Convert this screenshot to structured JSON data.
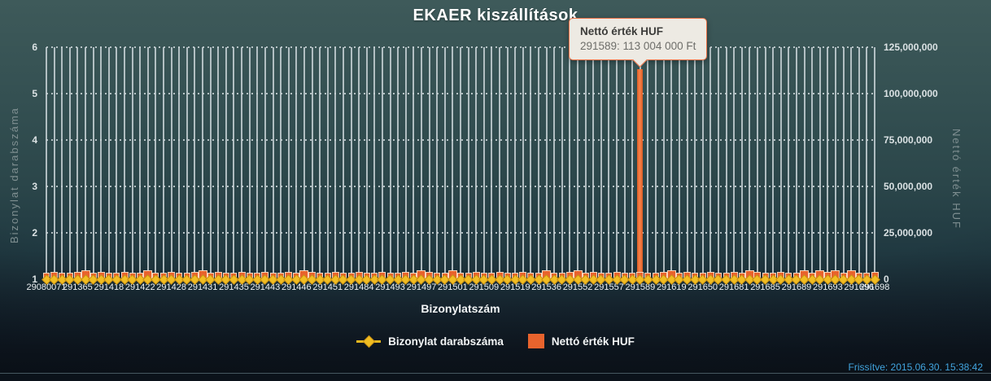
{
  "title": "EKAER kiszállítások",
  "tooltip": {
    "title": "Nettó érték HUF",
    "value": "291589: 113 004 000 Ft"
  },
  "axes": {
    "left": {
      "title": "Bizonylat darabszáma",
      "ticks": [
        "6",
        "5",
        "4",
        "3",
        "2",
        "1"
      ]
    },
    "right": {
      "title": "Nettó érték HUF",
      "ticks": [
        "125,000,000",
        "100,000,000",
        "75,000,000",
        "50,000,000",
        "25,000,000",
        "0"
      ]
    },
    "x": {
      "title": "Bizonylatszám"
    }
  },
  "legend": {
    "items": [
      {
        "label": "Bizonylat darabszáma",
        "marker": "diamond-line",
        "color": "#f1bd22"
      },
      {
        "label": "Nettó érték HUF",
        "marker": "square",
        "color": "#e8632d"
      }
    ]
  },
  "footer": {
    "updated": "Frissítve: 2015.06.30. 15:38:42"
  },
  "colors": {
    "count_series": "#f1bd22",
    "net_series": "#e8632d",
    "tooltip_bg": "#edeae3",
    "tooltip_border": "#ec7448",
    "updated_link": "#41a4de",
    "gridline": "#d5dee1"
  },
  "chart_data": {
    "type": "combo line+column",
    "categories_count": 107,
    "x_labels": [
      {
        "i": 0,
        "t": "29080071"
      },
      {
        "i": 4,
        "t": "291365"
      },
      {
        "i": 8,
        "t": "291418"
      },
      {
        "i": 12,
        "t": "291422"
      },
      {
        "i": 16,
        "t": "291428"
      },
      {
        "i": 20,
        "t": "291431"
      },
      {
        "i": 24,
        "t": "291435"
      },
      {
        "i": 28,
        "t": "291443"
      },
      {
        "i": 32,
        "t": "291446"
      },
      {
        "i": 36,
        "t": "291451"
      },
      {
        "i": 40,
        "t": "291484"
      },
      {
        "i": 44,
        "t": "291493"
      },
      {
        "i": 48,
        "t": "291497"
      },
      {
        "i": 52,
        "t": "291501"
      },
      {
        "i": 56,
        "t": "291509"
      },
      {
        "i": 60,
        "t": "291519"
      },
      {
        "i": 64,
        "t": "291536"
      },
      {
        "i": 68,
        "t": "291552"
      },
      {
        "i": 72,
        "t": "291557"
      },
      {
        "i": 76,
        "t": "291589"
      },
      {
        "i": 80,
        "t": "291619"
      },
      {
        "i": 84,
        "t": "291650"
      },
      {
        "i": 88,
        "t": "291681"
      },
      {
        "i": 92,
        "t": "291685"
      },
      {
        "i": 96,
        "t": "291689"
      },
      {
        "i": 100,
        "t": "291693"
      },
      {
        "i": 104,
        "t": "291696"
      },
      {
        "i": 106,
        "t": "291698"
      }
    ],
    "series": [
      {
        "name": "Bizonylat darabszáma",
        "type": "line",
        "axis": "left",
        "marker": "diamond",
        "color": "#f1bd22",
        "uniform_value": 1
      },
      {
        "name": "Nettó érték HUF",
        "type": "column",
        "axis": "right",
        "color": "#e8632d",
        "typical_small_value_estimate": 2000000,
        "larger_value_indices": [
          5,
          13,
          20,
          33,
          48,
          52,
          64,
          68,
          80,
          90,
          97,
          99,
          101,
          103
        ]
      }
    ],
    "highlight": {
      "index": 76,
      "category": "291589",
      "value": 113004000,
      "value_label": "113 004 000 Ft"
    },
    "left_axis": {
      "label": "Bizonylat darabszáma",
      "min": 1,
      "max": 6
    },
    "right_axis": {
      "label": "Nettó érték HUF",
      "min": 0,
      "max": 125000000
    },
    "grid": {
      "horizontal": "dotted",
      "vertical": "solid-per-category"
    },
    "legend_position": "bottom"
  }
}
